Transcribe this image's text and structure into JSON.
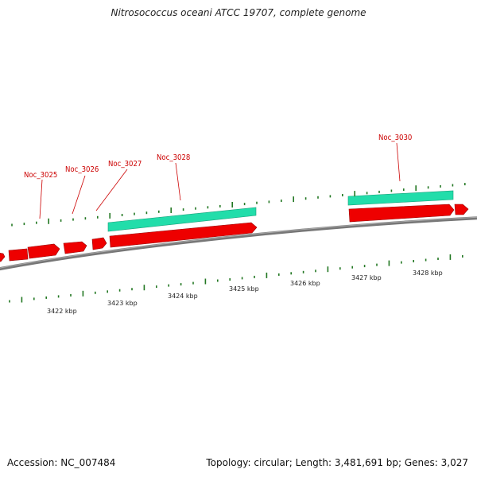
{
  "title": "Nitrosococcus oceani ATCC 19707, complete genome",
  "footer": {
    "accession": "Accession: NC_007484",
    "topology": "Topology: circular; Length: 3,481,691 bp; Genes: 3,027"
  },
  "colors": {
    "forward_gene": "#ee0000",
    "reverse_gene": "#22ddaa",
    "backbone": "#777777",
    "tick": "#227722",
    "label": "#cc0000"
  },
  "scale": {
    "unit": "kbp",
    "ticks": [
      {
        "value": 3422,
        "label": "3422 kbp"
      },
      {
        "value": 3423,
        "label": "3423 kbp"
      },
      {
        "value": 3424,
        "label": "3424 kbp"
      },
      {
        "value": 3425,
        "label": "3425 kbp"
      },
      {
        "value": 3426,
        "label": "3426 kbp"
      },
      {
        "value": 3427,
        "label": "3427 kbp"
      },
      {
        "value": 3428,
        "label": "3428 kbp"
      }
    ]
  },
  "gene_labels": [
    "Noc_3025",
    "Noc_3026",
    "Noc_3027",
    "Noc_3028",
    "Noc_3030"
  ]
}
